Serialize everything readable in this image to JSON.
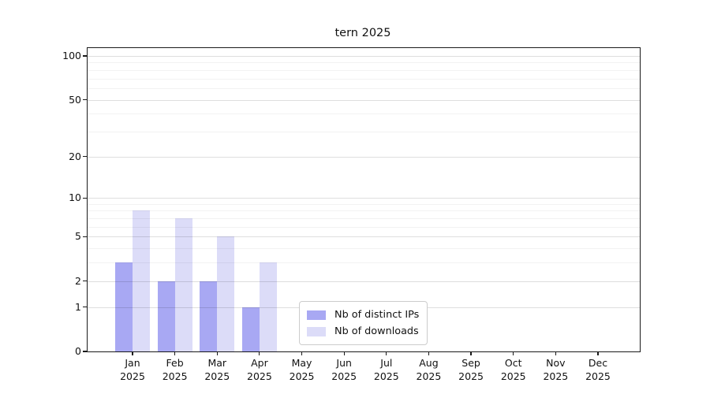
{
  "chart_data": {
    "type": "bar",
    "title": "tern 2025",
    "categories": [
      {
        "month": "Jan",
        "year": "2025"
      },
      {
        "month": "Feb",
        "year": "2025"
      },
      {
        "month": "Mar",
        "year": "2025"
      },
      {
        "month": "Apr",
        "year": "2025"
      },
      {
        "month": "May",
        "year": "2025"
      },
      {
        "month": "Jun",
        "year": "2025"
      },
      {
        "month": "Jul",
        "year": "2025"
      },
      {
        "month": "Aug",
        "year": "2025"
      },
      {
        "month": "Sep",
        "year": "2025"
      },
      {
        "month": "Oct",
        "year": "2025"
      },
      {
        "month": "Nov",
        "year": "2025"
      },
      {
        "month": "Dec",
        "year": "2025"
      }
    ],
    "series": [
      {
        "name": "Nb of distinct IPs",
        "color": "#a8a8f3",
        "values": [
          3,
          2,
          2,
          1,
          0,
          0,
          0,
          0,
          0,
          0,
          0,
          0
        ]
      },
      {
        "name": "Nb of downloads",
        "color": "#dcdcf8",
        "values": [
          8,
          7,
          5,
          3,
          0,
          0,
          0,
          0,
          0,
          0,
          0,
          0
        ]
      }
    ],
    "xlabel": "",
    "ylabel": "",
    "yscale": "log1p",
    "ylim": [
      0,
      100
    ],
    "yticks": [
      0,
      1,
      2,
      5,
      10,
      20,
      50,
      100
    ],
    "minor_gridlines": [
      3,
      4,
      6,
      7,
      8,
      9,
      30,
      40,
      60,
      70,
      80,
      90
    ],
    "grid": "horizontal",
    "legend_position": "lower-center"
  }
}
